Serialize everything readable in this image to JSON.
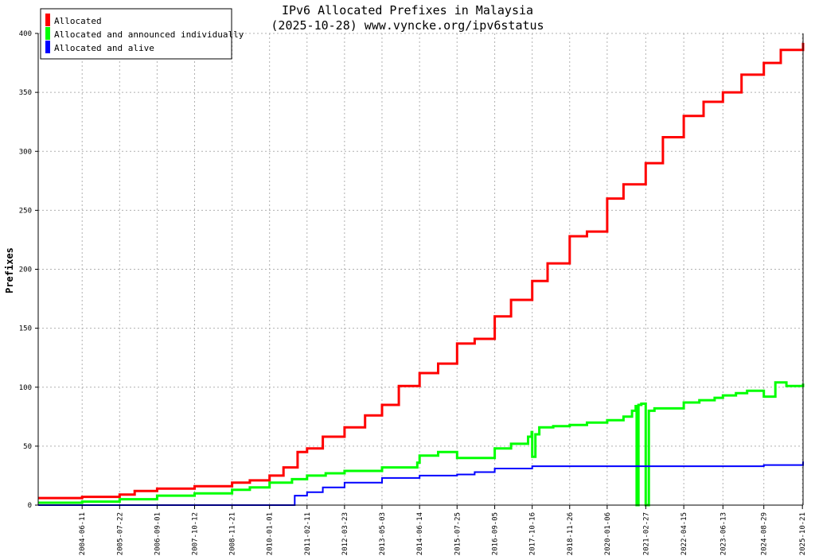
{
  "chart_data": {
    "type": "line",
    "title": "IPv6 Allocated Prefixes in Malaysia",
    "subtitle": "(2025-10-28) www.vyncke.org/ipv6status",
    "xlabel": "",
    "ylabel": "Prefixes",
    "ylim": [
      0,
      400
    ],
    "yticks": [
      0,
      50,
      100,
      150,
      200,
      250,
      300,
      350,
      400
    ],
    "xlim": [
      "2003-02-21",
      "2025-10-28"
    ],
    "xticks": [
      "2004-06-11",
      "2005-07-22",
      "2006-09-01",
      "2007-10-12",
      "2008-11-21",
      "2010-01-01",
      "2011-02-11",
      "2012-03-23",
      "2013-05-03",
      "2014-06-14",
      "2015-07-25",
      "2016-09-05",
      "2017-10-16",
      "2018-11-26",
      "2020-01-06",
      "2021-02-27",
      "2022-04-15",
      "2023-06-13",
      "2024-08-29",
      "2025-10-21"
    ],
    "grid": true,
    "legend_position": "top-left",
    "series": [
      {
        "name": "Allocated",
        "color": "#ff0000",
        "x": [
          "2003-02-21",
          "2004-06-11",
          "2005-07-22",
          "2006-01-01",
          "2006-09-01",
          "2007-10-12",
          "2008-11-21",
          "2009-06-01",
          "2010-01-01",
          "2010-06-01",
          "2010-11-01",
          "2011-02-11",
          "2011-08-01",
          "2012-03-23",
          "2012-11-01",
          "2013-05-03",
          "2013-11-01",
          "2014-06-14",
          "2015-01-01",
          "2015-07-25",
          "2016-02-01",
          "2016-09-05",
          "2017-03-01",
          "2017-10-16",
          "2018-04-01",
          "2018-11-26",
          "2019-06-01",
          "2020-01-06",
          "2020-07-01",
          "2021-02-27",
          "2021-09-01",
          "2022-04-15",
          "2022-11-15",
          "2023-06-13",
          "2024-01-01",
          "2024-08-29",
          "2025-03-01",
          "2025-10-28"
        ],
        "values": [
          6,
          7,
          9,
          12,
          14,
          16,
          19,
          21,
          25,
          32,
          45,
          48,
          58,
          66,
          76,
          85,
          101,
          112,
          120,
          137,
          141,
          160,
          174,
          190,
          205,
          228,
          232,
          260,
          272,
          290,
          312,
          330,
          342,
          350,
          365,
          375,
          386,
          392
        ]
      },
      {
        "name": "Allocated and announced individually",
        "color": "#00ff00",
        "x": [
          "2003-02-21",
          "2004-06-11",
          "2005-07-22",
          "2006-09-01",
          "2007-10-12",
          "2008-11-21",
          "2009-06-01",
          "2010-01-01",
          "2010-09-01",
          "2011-02-11",
          "2011-09-01",
          "2012-03-23",
          "2013-05-03",
          "2014-05-20",
          "2014-06-14",
          "2015-01-01",
          "2015-07-25",
          "2016-09-05",
          "2017-03-01",
          "2017-09-01",
          "2017-10-10",
          "2017-10-16",
          "2017-11-20",
          "2018-01-01",
          "2018-06-01",
          "2018-11-26",
          "2019-06-01",
          "2020-01-06",
          "2020-07-01",
          "2020-10-01",
          "2020-11-10",
          "2020-11-20",
          "2020-12-10",
          "2021-01-10",
          "2021-02-27",
          "2021-04-01",
          "2021-06-01",
          "2022-04-15",
          "2022-10-01",
          "2023-03-15",
          "2023-06-13",
          "2023-11-01",
          "2024-03-01",
          "2024-08-29",
          "2025-01-01",
          "2025-05-01",
          "2025-10-28"
        ],
        "values": [
          2,
          3,
          5,
          8,
          10,
          13,
          15,
          19,
          22,
          25,
          27,
          29,
          32,
          36,
          42,
          45,
          40,
          48,
          52,
          58,
          62,
          41,
          60,
          66,
          67,
          68,
          70,
          72,
          75,
          80,
          84,
          0,
          85,
          86,
          0,
          80,
          82,
          87,
          89,
          91,
          93,
          95,
          97,
          92,
          104,
          101,
          103
        ]
      },
      {
        "name": "Allocated and alive",
        "color": "#0000ff",
        "x": [
          "2003-02-21",
          "2004-06-11",
          "2005-07-22",
          "2006-09-01",
          "2007-10-12",
          "2008-11-21",
          "2010-01-01",
          "2010-09-01",
          "2010-10-01",
          "2011-02-11",
          "2011-08-01",
          "2012-03-23",
          "2013-05-03",
          "2014-06-14",
          "2015-07-25",
          "2016-02-01",
          "2016-09-05",
          "2017-10-16",
          "2018-11-26",
          "2020-01-06",
          "2021-02-27",
          "2022-04-15",
          "2023-06-13",
          "2024-08-29",
          "2025-06-01",
          "2025-10-28"
        ],
        "values": [
          0,
          0,
          0,
          0,
          0,
          0,
          0,
          0,
          8,
          11,
          15,
          19,
          23,
          25,
          26,
          28,
          31,
          33,
          33,
          33,
          33,
          33,
          33,
          34,
          34,
          37
        ]
      }
    ]
  }
}
